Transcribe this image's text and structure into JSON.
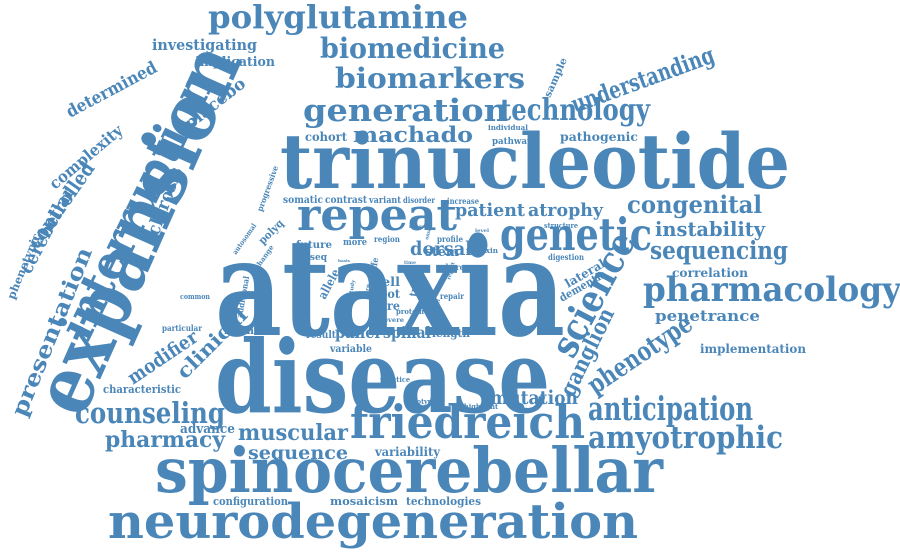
{
  "theme": {
    "word_color": "#4a86b8",
    "background": "#ffffff"
  },
  "words": [
    {
      "id": "ataxia",
      "text": "ataxia"
    },
    {
      "id": "trinucleotide",
      "text": "trinucleotide"
    },
    {
      "id": "disease",
      "text": "disease"
    },
    {
      "id": "expansion",
      "text": "expansion"
    },
    {
      "id": "spinocerebellar",
      "text": "spinocerebellar"
    },
    {
      "id": "neurodegeneration",
      "text": "neurodegeneration"
    },
    {
      "id": "friedreich",
      "text": "friedreich"
    },
    {
      "id": "repeat",
      "text": "repeat"
    },
    {
      "id": "genetic",
      "text": "genetic"
    },
    {
      "id": "interruption",
      "text": "interruption"
    },
    {
      "id": "pharmacology",
      "text": "pharmacology"
    },
    {
      "id": "science",
      "text": "science"
    },
    {
      "id": "polyglutamine",
      "text": "polyglutamine"
    },
    {
      "id": "biomedicine",
      "text": "biomedicine"
    },
    {
      "id": "biomarkers",
      "text": "biomarkers"
    },
    {
      "id": "generation",
      "text": "generation"
    },
    {
      "id": "technology",
      "text": "technology"
    },
    {
      "id": "anticipation",
      "text": "anticipation"
    },
    {
      "id": "amyotrophic",
      "text": "amyotrophic"
    },
    {
      "id": "counseling",
      "text": "counseling"
    },
    {
      "id": "phenotype",
      "text": "phenotype"
    },
    {
      "id": "sequencing",
      "text": "sequencing"
    },
    {
      "id": "congenital",
      "text": "congenital"
    },
    {
      "id": "presentation",
      "text": "presentation"
    },
    {
      "id": "understanding",
      "text": "understanding"
    },
    {
      "id": "machado",
      "text": "machado"
    },
    {
      "id": "pharmacy",
      "text": "pharmacy"
    },
    {
      "id": "muscular",
      "text": "muscular"
    },
    {
      "id": "sequence",
      "text": "sequence"
    },
    {
      "id": "mutation",
      "text": "mutation"
    },
    {
      "id": "ganglion",
      "text": "ganglion"
    },
    {
      "id": "instability",
      "text": "instability"
    },
    {
      "id": "patient",
      "text": "patient"
    },
    {
      "id": "atrophy",
      "text": "atrophy"
    },
    {
      "id": "clinical",
      "text": "clinical"
    },
    {
      "id": "modifier",
      "text": "modifier"
    },
    {
      "id": "controlled",
      "text": "controlled"
    },
    {
      "id": "cerebellar",
      "text": "cerebellar"
    },
    {
      "id": "sclerosis",
      "text": "sclerosis"
    },
    {
      "id": "placebo",
      "text": "placebo"
    },
    {
      "id": "complexity",
      "text": "complexity"
    },
    {
      "id": "determined",
      "text": "determined"
    },
    {
      "id": "investigating",
      "text": "investigating"
    },
    {
      "id": "implication",
      "text": "implication"
    },
    {
      "id": "penetrance",
      "text": "penetrance"
    },
    {
      "id": "implementation",
      "text": "implementation"
    },
    {
      "id": "correlation",
      "text": "correlation"
    },
    {
      "id": "dorsal",
      "text": "dorsal"
    },
    {
      "id": "panel",
      "text": "panel"
    },
    {
      "id": "spinal",
      "text": "spinal"
    },
    {
      "id": "advance",
      "text": "advance"
    },
    {
      "id": "variability",
      "text": "variability"
    },
    {
      "id": "mosaicism",
      "text": "mosaicism"
    },
    {
      "id": "technologies",
      "text": "technologies"
    },
    {
      "id": "configuration",
      "text": "configuration"
    },
    {
      "id": "characteristic",
      "text": "characteristic"
    },
    {
      "id": "cohort",
      "text": "cohort"
    },
    {
      "id": "pathogenic",
      "text": "pathogenic"
    },
    {
      "id": "lateral",
      "text": "lateral"
    },
    {
      "id": "dementia",
      "text": "dementia"
    },
    {
      "id": "phenotypic",
      "text": "phenotypic"
    },
    {
      "id": "illumina",
      "text": "illumina"
    },
    {
      "id": "result",
      "text": "result"
    },
    {
      "id": "length",
      "text": "length"
    },
    {
      "id": "variable",
      "text": "variable"
    },
    {
      "id": "cell",
      "text": "cell"
    },
    {
      "id": "root",
      "text": "root"
    },
    {
      "id": "rare",
      "text": "rare"
    },
    {
      "id": "stem",
      "text": "stem"
    },
    {
      "id": "future",
      "text": "future"
    },
    {
      "id": "miseq",
      "text": "miseq"
    },
    {
      "id": "somatic",
      "text": "somatic"
    },
    {
      "id": "contrast",
      "text": "contrast"
    },
    {
      "id": "variant",
      "text": "variant"
    },
    {
      "id": "disorder",
      "text": "disorder"
    },
    {
      "id": "increase",
      "text": "increase"
    },
    {
      "id": "pathway",
      "text": "pathway"
    },
    {
      "id": "individual",
      "text": "individual"
    },
    {
      "id": "sample",
      "text": "sample"
    },
    {
      "id": "progressive",
      "text": "progressive"
    },
    {
      "id": "polyq",
      "text": "polyq"
    },
    {
      "id": "autosomal",
      "text": "autosomal"
    },
    {
      "id": "change",
      "text": "change"
    },
    {
      "id": "additional",
      "text": "additional"
    },
    {
      "id": "common",
      "text": "common"
    },
    {
      "id": "particular",
      "text": "particular"
    },
    {
      "id": "allele",
      "text": "allele"
    },
    {
      "id": "more",
      "text": "more"
    },
    {
      "id": "region",
      "text": "region"
    },
    {
      "id": "profile",
      "text": "profile"
    },
    {
      "id": "frataxin",
      "text": "frataxin"
    },
    {
      "id": "digestion",
      "text": "digestion"
    },
    {
      "id": "structure",
      "text": "structure"
    },
    {
      "id": "chorea",
      "text": "chorea"
    },
    {
      "id": "trial",
      "text": "trial"
    },
    {
      "id": "repair",
      "text": "repair"
    },
    {
      "id": "protein",
      "text": "protein"
    },
    {
      "id": "practice",
      "text": "practice"
    },
    {
      "id": "genotype",
      "text": "genotype"
    },
    {
      "id": "highlight",
      "text": "highlight"
    },
    {
      "id": "severe",
      "text": "severe"
    },
    {
      "id": "life",
      "text": "life"
    },
    {
      "id": "pure",
      "text": "pure"
    },
    {
      "id": "study",
      "text": "study"
    },
    {
      "id": "range",
      "text": "range"
    },
    {
      "id": "frda",
      "text": "frda"
    },
    {
      "id": "level",
      "text": "level"
    },
    {
      "id": "report",
      "text": "report"
    },
    {
      "id": "novel",
      "text": "novel"
    },
    {
      "id": "onset",
      "text": "onset"
    },
    {
      "id": "time",
      "text": "time"
    },
    {
      "id": "basis",
      "text": "basis"
    }
  ]
}
